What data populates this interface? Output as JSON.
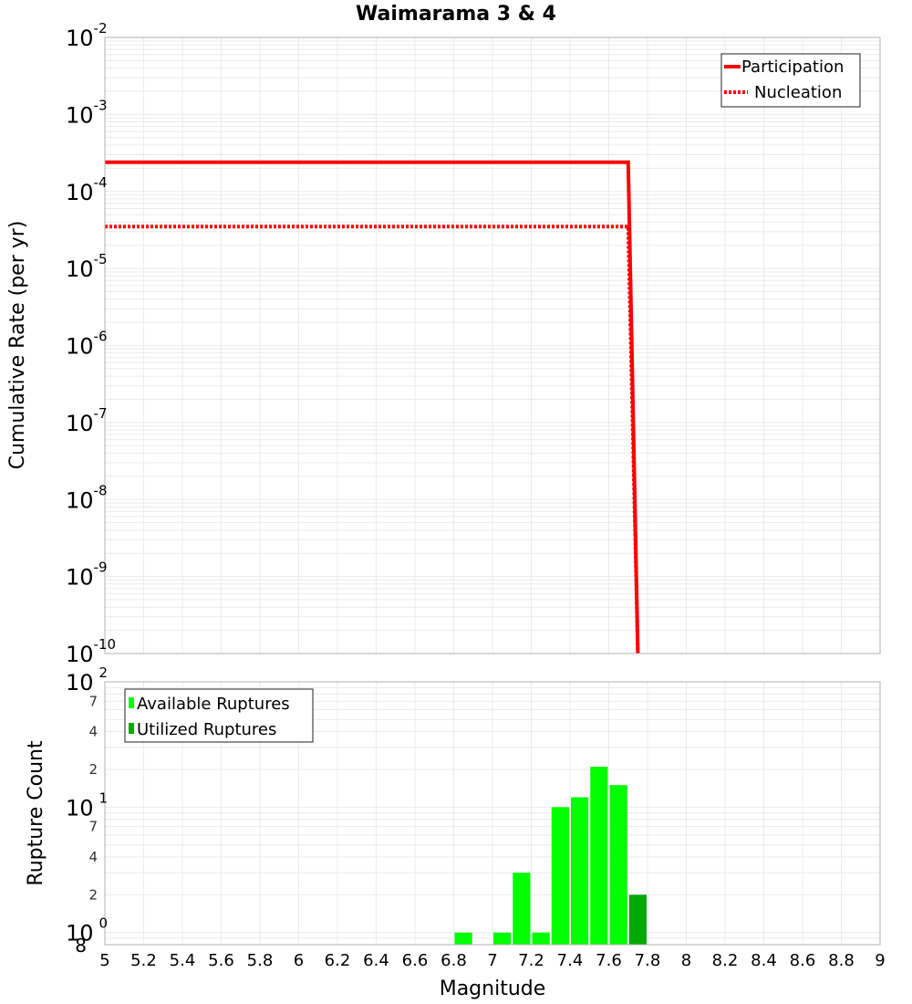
{
  "chart_data": [
    {
      "type": "line",
      "title": "Waimarama 3 & 4",
      "xlabel": "",
      "ylabel": "Cumulative Rate (per yr)",
      "xlim": [
        5,
        9
      ],
      "ylim": [
        1e-10,
        0.01
      ],
      "yscale": "log",
      "grid": true,
      "legend_position": "top-right",
      "y_tick_exponents": [
        -2,
        -3,
        -4,
        -5,
        -6,
        -7,
        -8,
        -9,
        -10
      ],
      "series": [
        {
          "name": "Participation",
          "style": "solid",
          "color": "#ff0000",
          "x": [
            5.0,
            7.7,
            7.75
          ],
          "y": [
            0.00024,
            0.00024,
            1e-10
          ]
        },
        {
          "name": "Nucleation",
          "style": "dotted",
          "color": "#ff0000",
          "x": [
            5.0,
            7.7,
            7.75
          ],
          "y": [
            3.5e-05,
            3.5e-05,
            1e-10
          ]
        }
      ]
    },
    {
      "type": "bar",
      "title": "",
      "xlabel": "Magnitude",
      "ylabel": "Rupture Count",
      "xlim": [
        5,
        9
      ],
      "ylim": [
        0.8,
        100
      ],
      "yscale": "log",
      "grid": true,
      "legend_position": "top-left",
      "x_ticks": [
        "5",
        "5.2",
        "5.4",
        "5.6",
        "5.8",
        "6",
        "6.2",
        "6.4",
        "6.6",
        "6.8",
        "7",
        "7.2",
        "7.4",
        "7.6",
        "7.8",
        "8",
        "8.2",
        "8.4",
        "8.6",
        "8.8",
        "9"
      ],
      "y_major_ticks": [
        {
          "base": "10",
          "exp": "2",
          "value": 100
        },
        {
          "base": "10",
          "exp": "1",
          "value": 10
        },
        {
          "base": "10",
          "exp": "0",
          "value": 1
        }
      ],
      "y_minor_ticks": [
        {
          "label": "7",
          "value": 70
        },
        {
          "label": "4",
          "value": 40
        },
        {
          "label": "2",
          "value": 20
        },
        {
          "label": "7",
          "value": 7
        },
        {
          "label": "4",
          "value": 4
        },
        {
          "label": "2",
          "value": 2
        },
        {
          "label": "8",
          "value": 0.8
        }
      ],
      "series": [
        {
          "name": "Available Ruptures",
          "color": "#00ff00",
          "bins": [
            {
              "x0": 6.8,
              "x1": 6.9,
              "count": 1
            },
            {
              "x0": 7.0,
              "x1": 7.1,
              "count": 1
            },
            {
              "x0": 7.1,
              "x1": 7.2,
              "count": 3
            },
            {
              "x0": 7.2,
              "x1": 7.3,
              "count": 1
            },
            {
              "x0": 7.3,
              "x1": 7.4,
              "count": 10
            },
            {
              "x0": 7.4,
              "x1": 7.5,
              "count": 12
            },
            {
              "x0": 7.5,
              "x1": 7.6,
              "count": 21
            },
            {
              "x0": 7.6,
              "x1": 7.7,
              "count": 15
            }
          ]
        },
        {
          "name": "Utilized Ruptures",
          "color": "#00aa00",
          "bins": [
            {
              "x0": 7.7,
              "x1": 7.8,
              "count": 2
            }
          ]
        }
      ]
    }
  ],
  "page": {
    "title": "Waimarama 3 & 4",
    "top_ylabel": "Cumulative Rate (per yr)",
    "bottom_ylabel": "Rupture Count",
    "xlabel": "Magnitude",
    "legend_top": [
      "Participation",
      "Nucleation"
    ],
    "legend_bottom": [
      "Available Ruptures",
      "Utilized Ruptures"
    ]
  },
  "colors": {
    "participation": "#ff0000",
    "nucleation": "#ff0000",
    "available": "#00ff00",
    "utilized": "#00aa00",
    "grid": "#ebebeb",
    "frame": "#b0b0b0"
  }
}
